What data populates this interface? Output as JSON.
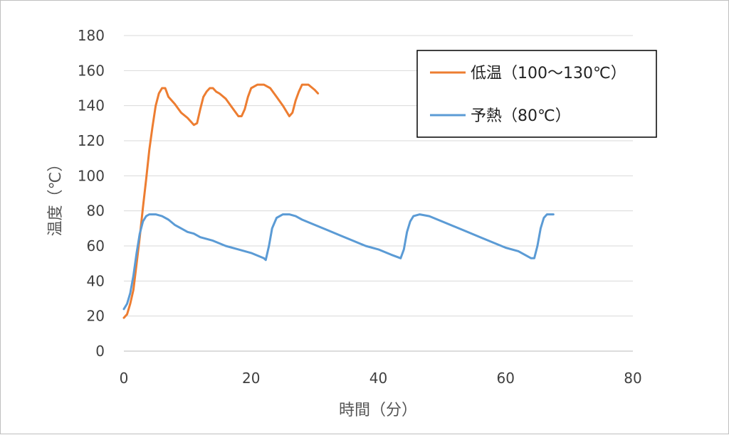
{
  "chart_data": {
    "type": "line",
    "title": "",
    "xlabel": "時間（分）",
    "ylabel": "温度（℃）",
    "xlim": [
      0,
      80
    ],
    "ylim": [
      0,
      180
    ],
    "x_ticks": [
      0,
      20,
      40,
      60,
      80
    ],
    "y_ticks": [
      0,
      20,
      40,
      60,
      80,
      100,
      120,
      140,
      160,
      180
    ],
    "grid": "horizontal",
    "legend_position": "top-right",
    "series": [
      {
        "name": "低温（100〜130℃）",
        "color": "#ED7D31",
        "points": [
          [
            0,
            19
          ],
          [
            0.5,
            21
          ],
          [
            1,
            27
          ],
          [
            1.5,
            35
          ],
          [
            2,
            50
          ],
          [
            2.5,
            65
          ],
          [
            3,
            82
          ],
          [
            3.5,
            98
          ],
          [
            4,
            115
          ],
          [
            4.5,
            128
          ],
          [
            5,
            140
          ],
          [
            5.5,
            147
          ],
          [
            6,
            150
          ],
          [
            6.5,
            150
          ],
          [
            7,
            145
          ],
          [
            8,
            141
          ],
          [
            9,
            136
          ],
          [
            10,
            133
          ],
          [
            11,
            129
          ],
          [
            11.5,
            130
          ],
          [
            12,
            138
          ],
          [
            12.5,
            145
          ],
          [
            13,
            148
          ],
          [
            13.5,
            150
          ],
          [
            14,
            150
          ],
          [
            14.5,
            148
          ],
          [
            15,
            147
          ],
          [
            16,
            144
          ],
          [
            17,
            139
          ],
          [
            18,
            134
          ],
          [
            18.5,
            134
          ],
          [
            19,
            138
          ],
          [
            19.5,
            145
          ],
          [
            20,
            150
          ],
          [
            21,
            152
          ],
          [
            22,
            152
          ],
          [
            23,
            150
          ],
          [
            24,
            145
          ],
          [
            25,
            140
          ],
          [
            26,
            134
          ],
          [
            26.5,
            136
          ],
          [
            27,
            143
          ],
          [
            27.5,
            148
          ],
          [
            28,
            152
          ],
          [
            29,
            152
          ],
          [
            30,
            149
          ],
          [
            30.5,
            147
          ]
        ]
      },
      {
        "name": "予熱（80℃）",
        "color": "#5B9BD5",
        "points": [
          [
            0,
            24
          ],
          [
            0.5,
            27
          ],
          [
            1,
            33
          ],
          [
            1.5,
            43
          ],
          [
            2,
            56
          ],
          [
            2.5,
            67
          ],
          [
            3,
            74
          ],
          [
            3.5,
            77
          ],
          [
            4,
            78
          ],
          [
            5,
            78
          ],
          [
            6,
            77
          ],
          [
            7,
            75
          ],
          [
            8,
            72
          ],
          [
            9,
            70
          ],
          [
            10,
            68
          ],
          [
            11,
            67
          ],
          [
            12,
            65
          ],
          [
            14,
            63
          ],
          [
            16,
            60
          ],
          [
            18,
            58
          ],
          [
            20,
            56
          ],
          [
            22,
            53
          ],
          [
            22.3,
            52
          ],
          [
            22.8,
            60
          ],
          [
            23.3,
            70
          ],
          [
            24,
            76
          ],
          [
            25,
            78
          ],
          [
            26,
            78
          ],
          [
            27,
            77
          ],
          [
            28,
            75
          ],
          [
            30,
            72
          ],
          [
            32,
            69
          ],
          [
            34,
            66
          ],
          [
            36,
            63
          ],
          [
            38,
            60
          ],
          [
            40,
            58
          ],
          [
            42,
            55
          ],
          [
            43.5,
            53
          ],
          [
            44,
            58
          ],
          [
            44.5,
            68
          ],
          [
            45,
            74
          ],
          [
            45.5,
            77
          ],
          [
            46.5,
            78
          ],
          [
            48,
            77
          ],
          [
            50,
            74
          ],
          [
            52,
            71
          ],
          [
            54,
            68
          ],
          [
            56,
            65
          ],
          [
            58,
            62
          ],
          [
            60,
            59
          ],
          [
            62,
            57
          ],
          [
            64,
            53
          ],
          [
            64.5,
            53
          ],
          [
            65,
            60
          ],
          [
            65.5,
            70
          ],
          [
            66,
            76
          ],
          [
            66.5,
            78
          ],
          [
            67.5,
            78
          ]
        ]
      }
    ]
  }
}
